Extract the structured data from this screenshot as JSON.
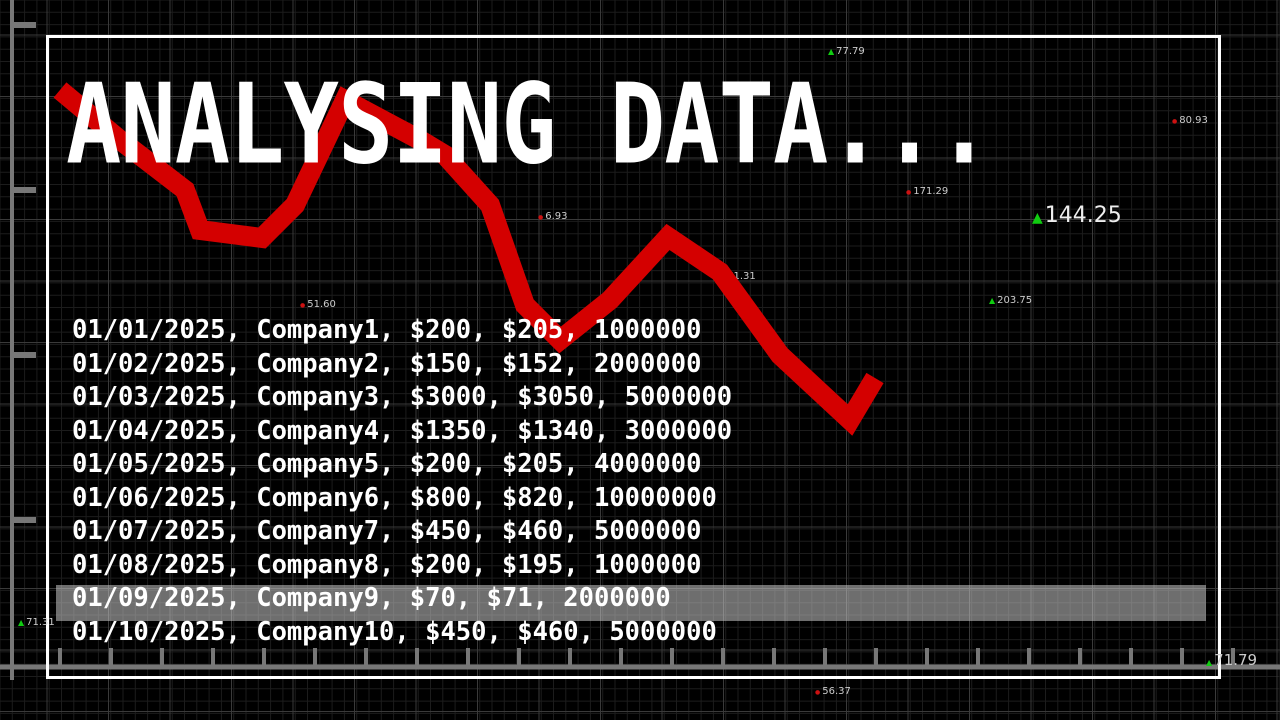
{
  "title": "ANALYSING DATA...",
  "rows": [
    "01/01/2025, Company1, $200, $205, 1000000",
    "01/02/2025, Company2, $150, $152, 2000000",
    "01/03/2025, Company3, $3000, $3050, 5000000",
    "01/04/2025, Company4, $1350, $1340, 3000000",
    "01/05/2025, Company5, $200, $205, 4000000",
    "01/06/2025, Company6, $800, $820, 10000000",
    "01/07/2025, Company7, $450, $460, 5000000",
    "01/08/2025, Company8, $200, $195, 1000000",
    "01/09/2025, Company9, $70, $71, 2000000",
    "01/10/2025, Company10, $450, $460, 5000000"
  ],
  "highlighted_row": 8,
  "tickers": [
    {
      "value": "77.79",
      "trend": "up"
    },
    {
      "value": "80.93",
      "trend": "down"
    },
    {
      "value": "171.29",
      "trend": "down"
    },
    {
      "value": "144.25",
      "trend": "up"
    },
    {
      "value": "6.93",
      "trend": "down"
    },
    {
      "value": "71.31",
      "trend": "up"
    },
    {
      "value": "203.75",
      "trend": "up"
    },
    {
      "value": "51.60",
      "trend": "down"
    },
    {
      "value": "56.37",
      "trend": "down"
    },
    {
      "value": "71.79",
      "trend": "up"
    },
    {
      "value": "71.31",
      "trend": "up"
    }
  ],
  "colors": {
    "line": "#d40000",
    "up": "#11cc11",
    "down": "#cc1111",
    "background": "#000000"
  }
}
